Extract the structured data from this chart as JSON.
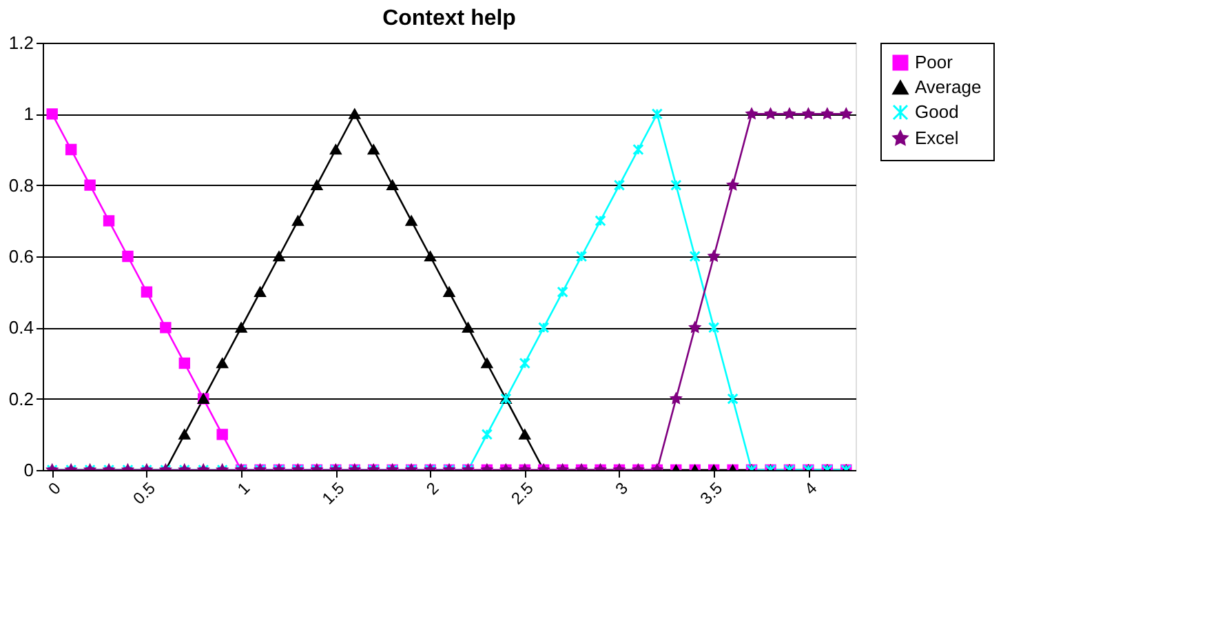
{
  "chart_data": {
    "type": "line",
    "title": "Context help",
    "x": [
      0,
      0.1,
      0.2,
      0.3,
      0.4,
      0.5,
      0.6,
      0.7,
      0.8,
      0.9,
      1,
      1.1,
      1.2,
      1.3,
      1.4,
      1.5,
      1.6,
      1.7,
      1.8,
      1.9,
      2,
      2.1,
      2.2,
      2.3,
      2.4,
      2.5,
      2.6,
      2.7,
      2.8,
      2.9,
      3,
      3.1,
      3.2,
      3.3,
      3.4,
      3.5,
      3.6,
      3.7,
      3.8,
      3.9,
      4,
      4.1,
      4.2
    ],
    "series": [
      {
        "name": "Poor",
        "color": "#ff00ff",
        "marker": "square",
        "values": [
          1,
          0.9,
          0.8,
          0.7,
          0.6,
          0.5,
          0.4,
          0.3,
          0.2,
          0.1,
          0,
          0,
          0,
          0,
          0,
          0,
          0,
          0,
          0,
          0,
          0,
          0,
          0,
          0,
          0,
          0,
          0,
          0,
          0,
          0,
          0,
          0,
          0,
          0,
          0,
          0,
          0,
          0,
          0,
          0,
          0,
          0,
          0
        ]
      },
      {
        "name": "Average",
        "color": "#000000",
        "marker": "triangle",
        "values": [
          0,
          0,
          0,
          0,
          0,
          0,
          0,
          0.1,
          0.2,
          0.3,
          0.4,
          0.5,
          0.6,
          0.7,
          0.8,
          0.9,
          1,
          0.9,
          0.8,
          0.7,
          0.6,
          0.5,
          0.4,
          0.3,
          0.2,
          0.1,
          0,
          0,
          0,
          0,
          0,
          0,
          0,
          0,
          0,
          0,
          0,
          0,
          0,
          0,
          0,
          0,
          0
        ]
      },
      {
        "name": "Good",
        "color": "#00ffff",
        "marker": "cross",
        "values": [
          0,
          0,
          0,
          0,
          0,
          0,
          0,
          0,
          0,
          0,
          0,
          0,
          0,
          0,
          0,
          0,
          0,
          0,
          0,
          0,
          0,
          0,
          0,
          0.1,
          0.2,
          0.3,
          0.4,
          0.5,
          0.6,
          0.7,
          0.8,
          0.9,
          1,
          0.8,
          0.6,
          0.4,
          0.2,
          0,
          0,
          0,
          0,
          0,
          0
        ]
      },
      {
        "name": "Excel",
        "color": "#800080",
        "marker": "star",
        "values": [
          0,
          0,
          0,
          0,
          0,
          0,
          0,
          0,
          0,
          0,
          0,
          0,
          0,
          0,
          0,
          0,
          0,
          0,
          0,
          0,
          0,
          0,
          0,
          0,
          0,
          0,
          0,
          0,
          0,
          0,
          0,
          0,
          0,
          0.2,
          0.4,
          0.6,
          0.8,
          1,
          1,
          1,
          1,
          1,
          1
        ]
      }
    ],
    "xlim": [
      -0.05,
      4.25
    ],
    "xticks": [
      0,
      0.5,
      1,
      1.5,
      2,
      2.5,
      3,
      3.5,
      4
    ],
    "ylim": [
      0,
      1.2
    ],
    "yticks": [
      0,
      0.2,
      0.4,
      0.6,
      0.8,
      1,
      1.2
    ],
    "grid": "y",
    "legend": "right",
    "line_style": "solid"
  }
}
